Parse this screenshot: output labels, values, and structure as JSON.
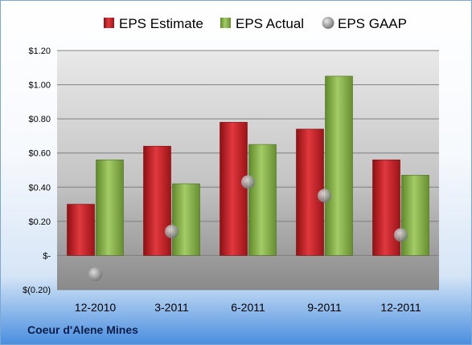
{
  "company": "Coeur d'Alene Mines",
  "chart_data": {
    "type": "bar",
    "categories": [
      "12-2010",
      "3-2011",
      "6-2011",
      "9-2011",
      "12-2011"
    ],
    "series": [
      {
        "name": "EPS Estimate",
        "kind": "bar",
        "color": "#c9262c",
        "values": [
          0.3,
          0.64,
          0.78,
          0.74,
          0.56
        ]
      },
      {
        "name": "EPS Actual",
        "kind": "bar",
        "color": "#8eb84f",
        "values": [
          0.56,
          0.42,
          0.65,
          1.05,
          0.47
        ]
      },
      {
        "name": "EPS GAAP",
        "kind": "marker",
        "color": "#9a9a9a",
        "values": [
          -0.11,
          0.14,
          0.43,
          0.35,
          0.12
        ]
      }
    ],
    "ylim": [
      -0.2,
      1.2
    ],
    "yticks": [
      -0.2,
      0,
      0.2,
      0.4,
      0.6,
      0.8,
      1.0,
      1.2
    ],
    "ytick_labels": [
      "$(0.20)",
      "$-",
      "$0.20",
      "$0.40",
      "$0.60",
      "$0.80",
      "$1.00",
      "$1.20"
    ],
    "grid": true,
    "legend": "top"
  }
}
